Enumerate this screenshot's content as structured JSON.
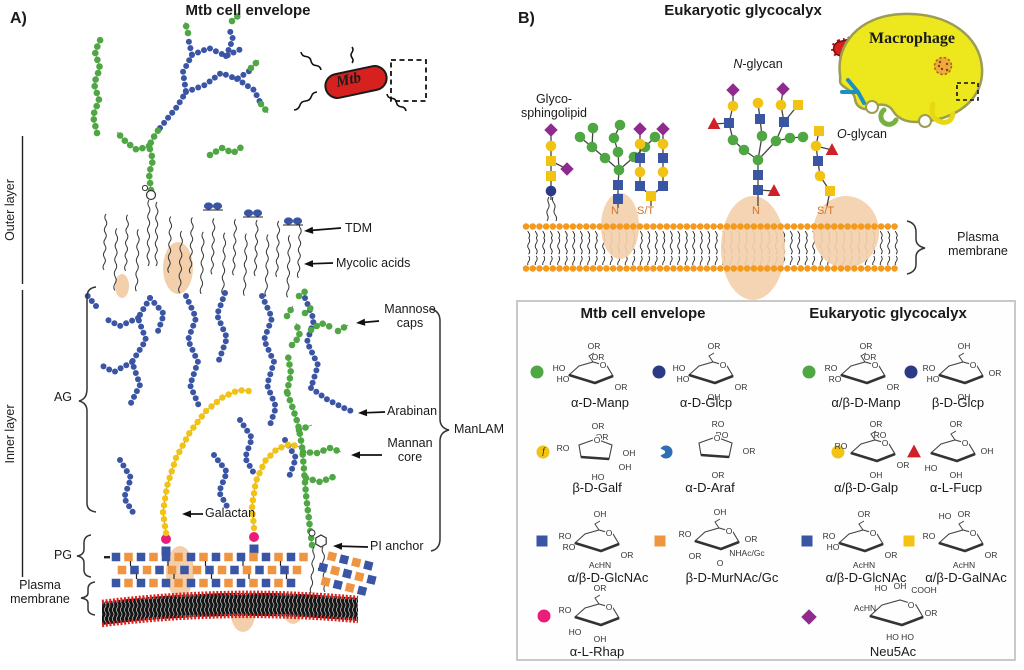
{
  "panel_a": {
    "tag": "A)",
    "title": "Mtb cell envelope",
    "bacterium_label": "Mtb",
    "side_labels": {
      "outer_layer": "Outer layer",
      "inner_layer": "Inner layer",
      "ag": "AG",
      "pg": "PG",
      "plasma_membrane": "Plasma membrane"
    },
    "callouts": {
      "tdm": "TDM",
      "mycolic_acids": "Mycolic acids",
      "mannose_caps": "Mannose caps",
      "arabinan": "Arabinan",
      "mannan_core": "Mannan core",
      "galactan": "Galactan",
      "pi_anchor": "PI anchor",
      "manlam": "ManLAM"
    }
  },
  "panel_b": {
    "tag": "B)",
    "title": "Eukaryotic glycocalyx",
    "macrophage_label": "Macrophage",
    "glycosphingolipid_label": "Glyco-sphingolipid",
    "n_glycan": {
      "prefix": "N",
      "suffix": "-glycan"
    },
    "o_glycan": {
      "prefix": "O",
      "suffix": "-glycan"
    },
    "plasma_membrane": "Plasma membrane",
    "site_labels": {
      "n1": "N",
      "st1": "S/T",
      "n2": "N",
      "st2": "S/T"
    }
  },
  "legend": {
    "header_mtb": "Mtb cell envelope",
    "header_euk": "Eukaryotic glycocalyx",
    "mtb": [
      {
        "symbol": "circle",
        "color": "#4fa743",
        "label": "α-D-Manp",
        "ring": "chair",
        "ann": [
          [
            "top",
            "OR"
          ],
          [
            "ti",
            "OR"
          ],
          [
            "l",
            "HO"
          ],
          [
            "l2",
            "HO"
          ],
          [
            "br",
            "OR"
          ],
          [
            "o",
            "O"
          ]
        ]
      },
      {
        "symbol": "circle",
        "color": "#2c3a85",
        "label": "α-D-Glcp",
        "ring": "chair",
        "ann": [
          [
            "top",
            "OR"
          ],
          [
            "l",
            "HO"
          ],
          [
            "l2",
            "HO"
          ],
          [
            "b",
            "OH"
          ],
          [
            "br",
            "OR"
          ],
          [
            "o",
            "O"
          ]
        ]
      },
      {
        "symbol": "circle-f",
        "symbol_letter": "f",
        "color": "#f2c313",
        "label": "β-D-Galf",
        "ring": "fura",
        "ann": [
          [
            "top",
            "OR"
          ],
          [
            "ti",
            "OR"
          ],
          [
            "l",
            "RO"
          ],
          [
            "r",
            "OH"
          ],
          [
            "b",
            "HO"
          ],
          [
            "br",
            "OH"
          ],
          [
            "o",
            "O"
          ]
        ]
      },
      {
        "symbol": "circle-notch",
        "color": "#2f6db4",
        "label": "α-D-Araf",
        "ring": "fura",
        "ann": [
          [
            "top",
            "RO"
          ],
          [
            "ti",
            "RO"
          ],
          [
            "r",
            "OR"
          ],
          [
            "b",
            "OR"
          ],
          [
            "o",
            "O"
          ]
        ]
      },
      {
        "symbol": "square",
        "color": "#3b55a5",
        "label": "α/β-D-GlcNAc",
        "ring": "chair",
        "ann": [
          [
            "top",
            "OH"
          ],
          [
            "l",
            "RO"
          ],
          [
            "l2",
            "RO"
          ],
          [
            "b",
            "AcHN"
          ],
          [
            "br",
            "OR"
          ],
          [
            "o",
            "O"
          ]
        ]
      },
      {
        "symbol": "square",
        "color": "#ef9440",
        "label": "β-D-MurNAc/Gc",
        "ring": "chair",
        "ann": [
          [
            "top",
            "OH"
          ],
          [
            "l",
            "RO"
          ],
          [
            "r",
            "OR"
          ],
          [
            "br",
            "NHAc/Gc"
          ],
          [
            "bl",
            "OR"
          ],
          [
            "b",
            "O"
          ],
          [
            "o",
            "O"
          ]
        ]
      },
      {
        "symbol": "circle",
        "color": "#ea1d78",
        "label": "α-L-Rhap",
        "ring": "chair",
        "ann": [
          [
            "top",
            "OR"
          ],
          [
            "l",
            "RO"
          ],
          [
            "bl",
            "HO"
          ],
          [
            "b",
            "OH"
          ],
          [
            "o",
            "O"
          ]
        ]
      }
    ],
    "euk": [
      {
        "symbol": "circle",
        "color": "#4fa743",
        "label": "α/β-D-Manp",
        "ring": "chair",
        "ann": [
          [
            "top",
            "OR"
          ],
          [
            "ti",
            "OR"
          ],
          [
            "l",
            "RO"
          ],
          [
            "l2",
            "RO"
          ],
          [
            "br",
            "OR"
          ],
          [
            "o",
            "O"
          ]
        ]
      },
      {
        "symbol": "circle",
        "color": "#2c3a85",
        "label": "β-D-Glcp",
        "ring": "chair",
        "ann": [
          [
            "top",
            "OH"
          ],
          [
            "l",
            "RO"
          ],
          [
            "l2",
            "HO"
          ],
          [
            "b",
            "OH"
          ],
          [
            "r",
            "OR"
          ],
          [
            "o",
            "O"
          ]
        ]
      },
      {
        "symbol": "circle",
        "color": "#f2c313",
        "label": "α/β-D-Galp",
        "ring": "chair",
        "ann": [
          [
            "top",
            "OR"
          ],
          [
            "ti",
            "RO"
          ],
          [
            "l",
            "RO"
          ],
          [
            "b",
            "OH"
          ],
          [
            "br",
            "OR"
          ],
          [
            "o",
            "O"
          ]
        ]
      },
      {
        "symbol": "triangle",
        "color": "#cf2127",
        "label": "α-L-Fucp",
        "ring": "chair",
        "ann": [
          [
            "top",
            "OR"
          ],
          [
            "r",
            "OH"
          ],
          [
            "b",
            "OH"
          ],
          [
            "bl",
            "HO"
          ],
          [
            "o",
            "O"
          ]
        ]
      },
      {
        "symbol": "square",
        "color": "#3b55a5",
        "label": "α/β-D-GlcNAc",
        "ring": "chair",
        "ann": [
          [
            "top",
            "OR"
          ],
          [
            "l",
            "RO"
          ],
          [
            "l2",
            "HO"
          ],
          [
            "b",
            "AcHN"
          ],
          [
            "br",
            "OR"
          ],
          [
            "o",
            "O"
          ]
        ]
      },
      {
        "symbol": "square",
        "color": "#f2c313",
        "label": "α/β-D-GalNAc",
        "ring": "chair",
        "ann": [
          [
            "tl",
            "HO"
          ],
          [
            "top",
            "OR"
          ],
          [
            "l",
            "RO"
          ],
          [
            "b",
            "AcHN"
          ],
          [
            "br",
            "OR"
          ],
          [
            "o",
            "O"
          ]
        ]
      },
      {
        "symbol": "diamond",
        "color": "#8f2b8f",
        "label": "Neu5Ac",
        "ring": "neu",
        "ann": [
          [
            "tl",
            "HO"
          ],
          [
            "top",
            "OH"
          ],
          [
            "tr",
            "COOH"
          ],
          [
            "l",
            "AcHN"
          ],
          [
            "b",
            "HO HO"
          ],
          [
            "r",
            "OR"
          ],
          [
            "o",
            "O"
          ]
        ]
      }
    ]
  },
  "colors": {
    "green": "#4fa743",
    "blue": "#3b55a5",
    "navy": "#2c3a85",
    "yellow": "#f2c313",
    "orange_square": "#ef9440",
    "magenta": "#ea1d78",
    "purple": "#8f2b8f",
    "red": "#cf2127",
    "membrane_head": "#f49a1f",
    "protein_peach": "#f3d0ab",
    "macrophage_yellow": "#ece81d",
    "mtb_red": "#d6211f"
  }
}
